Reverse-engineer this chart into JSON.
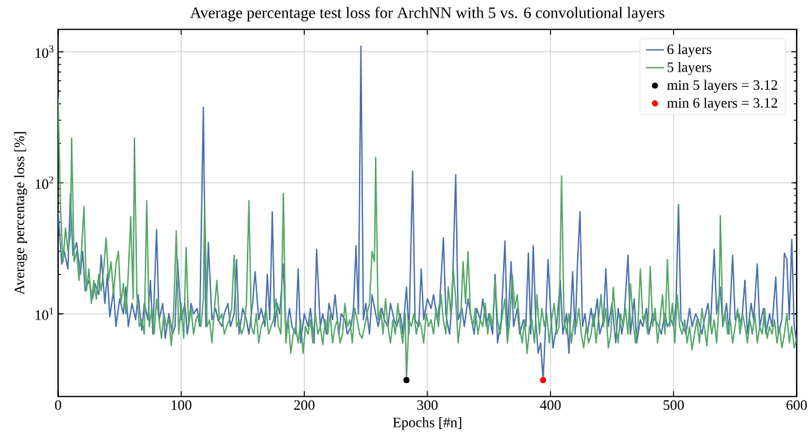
{
  "chart_data": {
    "type": "line",
    "title": "Average percentage test loss for ArchNN with 5 vs. 6 convolutional layers",
    "xlabel": "Epochs [#n]",
    "ylabel": "Average percentage loss [%]",
    "xlim": [
      0,
      600
    ],
    "ylim": [
      2.34,
      1480
    ],
    "xticks": [
      0,
      100,
      200,
      300,
      400,
      500,
      600
    ],
    "yticks": [
      {
        "value": 10,
        "label": "10$^{1}$"
      },
      {
        "value": 100,
        "label": "10$^{2}$"
      },
      {
        "value": 1000,
        "label": "10$^{3}$"
      }
    ],
    "log": "y",
    "grid": true,
    "legend": "top right",
    "series": [
      {
        "name": "6 layers",
        "color": "#4c72b0",
        "x": [
          0,
          3,
          5,
          8,
          10,
          12,
          15,
          18,
          20,
          22,
          25,
          28,
          30,
          33,
          35,
          38,
          40,
          42,
          45,
          47,
          50,
          53,
          55,
          57,
          60,
          63,
          65,
          68,
          70,
          73,
          75,
          77,
          80,
          82,
          85,
          87,
          90,
          93,
          95,
          97,
          100,
          103,
          105,
          108,
          110,
          113,
          115,
          118,
          120,
          122,
          125,
          128,
          130,
          133,
          135,
          138,
          140,
          143,
          145,
          147,
          150,
          153,
          155,
          158,
          160,
          163,
          165,
          168,
          170,
          172,
          174,
          176,
          178,
          180,
          183,
          185,
          188,
          190,
          193,
          195,
          197,
          200,
          203,
          205,
          208,
          210,
          213,
          215,
          218,
          220,
          223,
          225,
          228,
          230,
          233,
          235,
          238,
          240,
          242,
          244,
          246,
          248,
          250,
          253,
          255,
          258,
          260,
          263,
          265,
          268,
          270,
          273,
          275,
          278,
          280,
          283,
          285,
          288,
          290,
          293,
          295,
          297,
          300,
          303,
          305,
          308,
          310,
          313,
          315,
          318,
          320,
          323,
          325,
          328,
          330,
          333,
          335,
          338,
          340,
          343,
          345,
          348,
          350,
          353,
          355,
          357,
          360,
          363,
          365,
          368,
          370,
          373,
          375,
          378,
          380,
          382,
          384,
          386,
          388,
          390,
          392,
          394,
          396,
          398,
          400,
          402,
          405,
          408,
          410,
          413,
          415,
          418,
          420,
          422,
          424,
          426,
          428,
          430,
          433,
          435,
          438,
          440,
          443,
          445,
          447,
          450,
          453,
          455,
          458,
          460,
          463,
          465,
          468,
          470,
          473,
          475,
          478,
          480,
          483,
          485,
          488,
          490,
          493,
          495,
          498,
          500,
          502,
          504,
          506,
          508,
          510,
          513,
          515,
          518,
          520,
          523,
          525,
          528,
          530,
          533,
          535,
          538,
          540,
          543,
          545,
          548,
          550,
          553,
          555,
          558,
          560,
          563,
          565,
          568,
          570,
          573,
          575,
          578,
          580,
          583,
          585,
          588,
          590,
          592,
          594,
          596,
          598,
          600
        ],
        "values": [
          60,
          24,
          30,
          22,
          82,
          28,
          35,
          20,
          30,
          15,
          18,
          13,
          17,
          14,
          28,
          12,
          20,
          9.5,
          15,
          8,
          13,
          10,
          16,
          8,
          12,
          9,
          14,
          7.5,
          12,
          9,
          18,
          7,
          44,
          9,
          12,
          6.5,
          10,
          7,
          8,
          26,
          9,
          12,
          7,
          12,
          10,
          11,
          8,
          377,
          8,
          35,
          9,
          11,
          9,
          8,
          10,
          12,
          8,
          10,
          26,
          7,
          11,
          9,
          7,
          12,
          21,
          9,
          11,
          8,
          20,
          9,
          60,
          8,
          12,
          10,
          24,
          7,
          11,
          8,
          7,
          22,
          6,
          10,
          8,
          11,
          6,
          31,
          8,
          10,
          7,
          12,
          9,
          14,
          7,
          10,
          9,
          7,
          8,
          11,
          33,
          10,
          1100,
          9,
          12,
          7,
          14,
          10,
          8,
          11,
          9,
          8,
          12,
          9,
          8,
          10,
          7,
          16,
          7,
          123,
          9,
          8,
          22,
          9,
          13,
          11,
          14,
          9,
          12,
          38,
          10,
          7,
          12,
          115,
          9,
          11,
          8,
          13,
          10,
          7,
          11,
          9,
          13,
          8,
          10,
          7,
          20,
          6,
          9,
          36,
          7,
          25,
          8,
          11,
          7,
          9,
          8,
          29,
          7,
          33,
          9,
          5,
          6,
          3.12,
          8,
          26,
          11,
          5.5,
          8,
          18,
          7,
          10,
          5,
          21,
          7,
          25,
          60,
          8,
          10,
          7,
          11,
          8,
          13,
          7,
          9,
          22,
          8,
          12,
          6,
          11,
          7,
          10,
          28,
          7,
          13,
          6,
          9,
          8,
          11,
          7,
          10,
          9,
          8,
          7,
          10,
          8,
          9,
          8,
          12,
          68,
          9,
          8,
          7,
          11,
          8,
          10,
          9,
          7,
          9,
          12,
          8,
          31,
          10,
          16,
          8,
          12,
          7,
          28,
          9,
          10,
          8,
          18,
          7,
          12,
          9,
          24,
          8,
          11,
          7,
          10,
          8,
          19,
          7,
          9,
          29,
          26,
          9,
          37,
          8,
          6
        ]
      },
      {
        "name": "5 layers",
        "color": "#55a868",
        "x": [
          0,
          2,
          4,
          6,
          8,
          10,
          11,
          13,
          15,
          17,
          19,
          21,
          23,
          25,
          27,
          29,
          31,
          33,
          35,
          37,
          39,
          41,
          43,
          45,
          47,
          49,
          51,
          53,
          55,
          57,
          59,
          61,
          62,
          64,
          66,
          68,
          70,
          72,
          74,
          76,
          78,
          80,
          82,
          84,
          86,
          88,
          90,
          92,
          94,
          96,
          98,
          100,
          102,
          104,
          106,
          108,
          110,
          112,
          114,
          116,
          118,
          119,
          121,
          123,
          125,
          127,
          129,
          131,
          133,
          135,
          137,
          139,
          141,
          143,
          145,
          147,
          149,
          151,
          153,
          155,
          157,
          159,
          161,
          163,
          165,
          167,
          169,
          171,
          173,
          175,
          177,
          179,
          181,
          183,
          185,
          187,
          189,
          191,
          193,
          195,
          197,
          199,
          201,
          203,
          205,
          207,
          209,
          211,
          213,
          215,
          217,
          219,
          221,
          223,
          225,
          227,
          229,
          231,
          233,
          235,
          237,
          239,
          241,
          243,
          245,
          247,
          249,
          251,
          253,
          255,
          257,
          258,
          260,
          262,
          264,
          266,
          268,
          270,
          272,
          274,
          276,
          278,
          280,
          282,
          283,
          285,
          287,
          289,
          291,
          293,
          295,
          297,
          299,
          301,
          303,
          305,
          307,
          309,
          311,
          313,
          315,
          317,
          319,
          321,
          323,
          325,
          327,
          329,
          331,
          333,
          335,
          337,
          339,
          341,
          343,
          345,
          347,
          349,
          351,
          353,
          355,
          357,
          359,
          361,
          363,
          365,
          367,
          369,
          371,
          373,
          375,
          377,
          379,
          381,
          383,
          385,
          387,
          389,
          391,
          393,
          395,
          397,
          399,
          401,
          403,
          405,
          407,
          409,
          411,
          413,
          415,
          417,
          419,
          421,
          423,
          425,
          427,
          429,
          431,
          433,
          435,
          437,
          439,
          441,
          443,
          445,
          447,
          449,
          451,
          453,
          455,
          457,
          459,
          461,
          463,
          465,
          467,
          469,
          471,
          473,
          475,
          477,
          479,
          481,
          483,
          485,
          487,
          489,
          491,
          493,
          495,
          497,
          499,
          501,
          503,
          505,
          507,
          509,
          511,
          513,
          515,
          517,
          519,
          521,
          523,
          525,
          527,
          529,
          531,
          533,
          535,
          537,
          538,
          540,
          542,
          544,
          546,
          548,
          550,
          552,
          554,
          556,
          558,
          560,
          562,
          564,
          566,
          568,
          570,
          572,
          574,
          576,
          578,
          580,
          582,
          584,
          586,
          588,
          590,
          592,
          594,
          596,
          598,
          600
        ],
        "values": [
          447,
          60,
          25,
          45,
          30,
          40,
          219,
          25,
          30,
          18,
          30,
          66,
          15,
          22,
          12,
          18,
          13,
          20,
          15,
          22,
          38,
          18,
          25,
          14,
          24,
          30,
          12,
          17,
          10,
          20,
          55,
          13,
          219,
          14,
          8,
          9,
          7,
          73,
          8,
          11,
          7,
          13,
          9,
          6.5,
          10,
          8,
          9,
          5.7,
          11,
          43,
          7,
          12,
          6.5,
          32,
          8,
          11,
          7,
          9,
          10,
          8,
          13,
          72,
          8,
          9,
          6,
          11,
          18,
          9,
          10,
          7,
          8,
          9,
          11,
          28,
          8,
          9,
          7,
          8,
          12,
          73,
          8,
          7,
          10,
          6,
          8,
          9,
          11,
          7,
          8,
          9,
          13,
          8,
          7,
          83,
          6,
          9,
          5,
          7,
          8,
          6,
          9,
          5,
          8,
          7,
          9,
          6,
          10,
          7,
          8,
          5.8,
          9,
          7,
          10,
          6,
          8,
          9,
          6,
          7,
          12,
          8,
          9,
          6,
          11,
          9,
          7,
          6.5,
          8,
          10,
          12,
          30,
          25,
          156,
          9,
          11,
          7,
          13,
          8,
          6,
          9,
          7,
          12,
          8,
          6,
          10,
          3.12,
          9,
          8,
          10,
          7,
          9,
          8,
          6,
          10,
          8,
          9,
          7,
          11,
          8,
          14,
          9,
          7,
          16,
          10,
          22,
          13,
          6,
          9,
          25,
          12,
          30,
          10,
          8,
          11,
          7,
          9,
          8,
          12,
          7,
          10,
          8,
          18,
          9,
          7,
          10,
          13,
          6,
          9,
          20,
          11,
          14,
          8,
          6,
          9,
          5,
          8,
          9,
          6,
          14,
          7,
          11,
          8,
          10,
          6,
          9,
          12,
          7,
          8,
          113,
          9,
          7,
          10,
          6,
          9,
          8,
          11,
          7,
          5.5,
          8,
          6,
          7,
          10,
          6,
          9,
          14,
          8,
          11,
          5.5,
          7,
          16,
          9,
          6,
          10,
          8,
          11,
          7,
          17,
          9,
          6,
          8,
          22,
          9,
          10,
          7,
          23,
          8,
          11,
          6,
          9,
          14,
          7,
          26,
          8,
          12,
          6,
          14,
          8,
          7,
          9,
          6,
          8,
          5.3,
          7,
          9,
          6,
          11,
          8,
          5.7,
          10,
          7,
          9,
          6,
          12,
          56,
          8,
          10,
          7,
          9,
          6,
          8,
          11,
          7,
          10,
          8,
          6,
          9,
          7,
          10,
          6,
          8,
          7,
          11,
          6.5,
          8,
          7,
          9,
          6,
          8,
          5.5,
          7,
          10,
          6,
          8,
          5.5,
          6.5
        ]
      },
      {
        "name": "min 5 layers = 3.12",
        "type": "scatter",
        "marker": "circle",
        "color": "#000000",
        "x": [
          283
        ],
        "values": [
          3.12
        ]
      },
      {
        "name": "min 6 layers = 3.12",
        "type": "scatter",
        "marker": "circle",
        "color": "#ff0000",
        "x": [
          394
        ],
        "values": [
          3.12
        ]
      }
    ]
  }
}
